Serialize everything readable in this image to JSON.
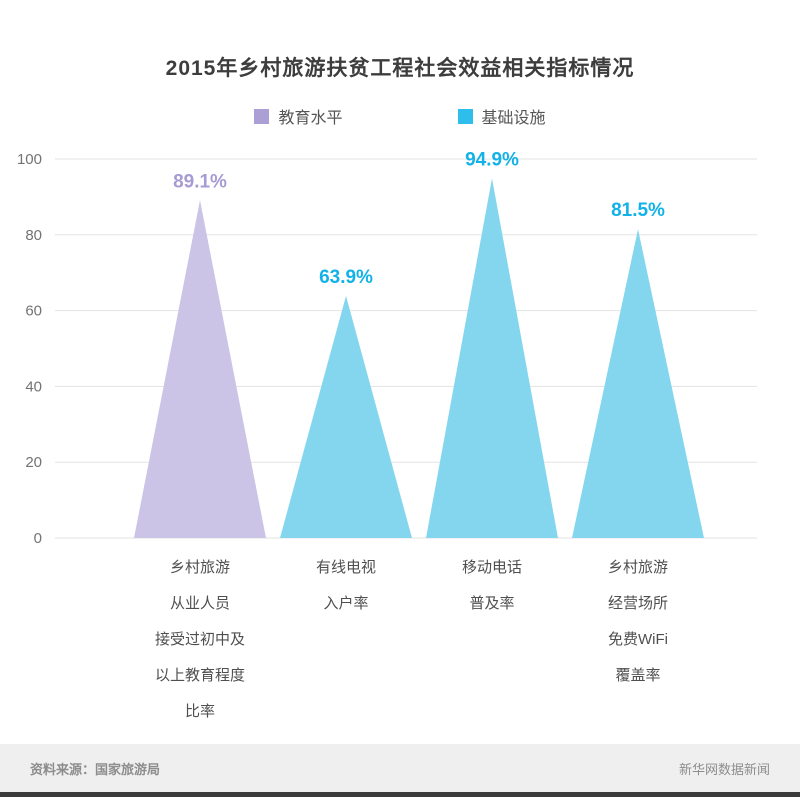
{
  "title": "2015年乡村旅游扶贫工程社会效益相关指标情况",
  "legend": {
    "items": [
      {
        "label": "教育水平",
        "color": "#ab9fd6"
      },
      {
        "label": "基础设施",
        "color": "#2fbdec"
      }
    ]
  },
  "footer": {
    "source": "资料来源：国家旅游局",
    "credit": "新华网数据新闻"
  },
  "chart_data": {
    "type": "bar",
    "mark_shape": "triangle",
    "title": "2015年乡村旅游扶贫工程社会效益相关指标情况",
    "categories": [
      "乡村旅游从业人员接受过初中及以上教育程度比率",
      "有线电视入户率",
      "移动电话普及率",
      "乡村旅游经营场所免费WiFi覆盖率"
    ],
    "values": [
      89.1,
      63.9,
      94.9,
      81.5
    ],
    "value_labels": [
      "89.1%",
      "63.9%",
      "94.9%",
      "81.5%"
    ],
    "series_by_point": [
      "教育水平",
      "基础设施",
      "基础设施",
      "基础设施"
    ],
    "ylim": [
      0,
      100
    ],
    "yticks": [
      0,
      20,
      40,
      60,
      80,
      100
    ],
    "grid": true,
    "legend_position": "top",
    "colors": {
      "education_fill": "#cbc4e6",
      "education_label": "#a79bd4",
      "infrastructure_fill": "#84d6ef",
      "infrastructure_label": "#12b2e8",
      "gridline": "#e3e3e3",
      "axis_text": "#737373",
      "category_text": "#4f4f4f"
    },
    "points": [
      {
        "label_lines": [
          "乡村旅游",
          "从业人员",
          "接受过初中及",
          "以上教育程度",
          "比率"
        ],
        "value": 89.1,
        "display": "89.1%",
        "series": "教育水平",
        "fill": "#cbc4e6",
        "value_color": "#a79bd4"
      },
      {
        "label_lines": [
          "有线电视",
          "入户率"
        ],
        "value": 63.9,
        "display": "63.9%",
        "series": "基础设施",
        "fill": "#84d6ef",
        "value_color": "#12b2e8"
      },
      {
        "label_lines": [
          "移动电话",
          "普及率"
        ],
        "value": 94.9,
        "display": "94.9%",
        "series": "基础设施",
        "fill": "#84d6ef",
        "value_color": "#12b2e8"
      },
      {
        "label_lines": [
          "乡村旅游",
          "经营场所",
          "免费WiFi",
          "覆盖率"
        ],
        "value": 81.5,
        "display": "81.5%",
        "series": "基础设施",
        "fill": "#84d6ef",
        "value_color": "#12b2e8"
      }
    ]
  }
}
